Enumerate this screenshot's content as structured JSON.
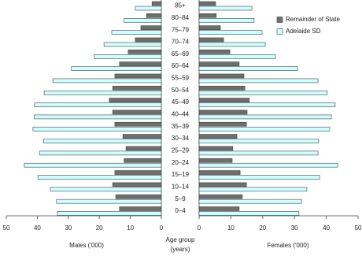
{
  "chart_data": {
    "type": "pyramid",
    "categories": [
      "85+",
      "80–84",
      "75–79",
      "70–74",
      "65–69",
      "60–64",
      "55–59",
      "50–54",
      "45–49",
      "40–44",
      "35–39",
      "30–34",
      "25–29",
      "20–24",
      "15–19",
      "10–14",
      "5–9",
      "0–4"
    ],
    "series": [
      {
        "name": "Remainder of State",
        "color": "#6e6e6e",
        "males": [
          3,
          4.8,
          6.6,
          8.4,
          10.7,
          13.5,
          15,
          15.7,
          16.8,
          15.7,
          15,
          12.4,
          11.4,
          12,
          15,
          15.7,
          14.7,
          13.5
        ],
        "females": [
          5.2,
          5.4,
          6.7,
          7.7,
          9.7,
          12.6,
          14.1,
          14.4,
          15.8,
          15.1,
          14.9,
          11.9,
          10.6,
          10.4,
          12.9,
          14.9,
          13.6,
          12.6
        ]
      },
      {
        "name": "Adelaide SD",
        "color": "#ccffff",
        "males": [
          8.4,
          12,
          16,
          18.5,
          21.6,
          29,
          35,
          37.8,
          40.9,
          41,
          41.4,
          38,
          39.3,
          44.2,
          39.8,
          35.8,
          33.8,
          33.5
        ],
        "females": [
          16.6,
          17.3,
          19.8,
          20.8,
          24,
          31,
          37.4,
          40.3,
          42.8,
          41.6,
          41.1,
          37.6,
          37.4,
          43.6,
          37.9,
          33.9,
          32.2,
          31.4
        ]
      }
    ],
    "xlim": [
      0,
      50
    ],
    "xticks": [
      0,
      10,
      20,
      30,
      40,
      50
    ],
    "male_label": "Males ('000)",
    "female_label": "Females ('000)",
    "age_label": [
      "Age group",
      "(years)"
    ]
  }
}
